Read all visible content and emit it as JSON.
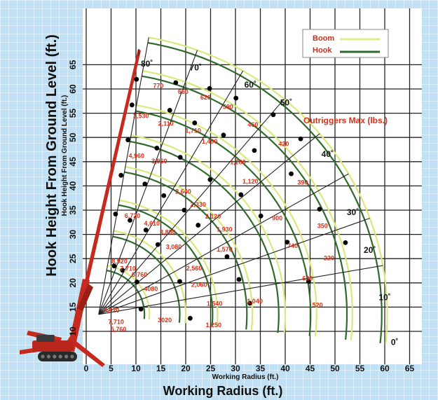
{
  "chart_data": {
    "type": "scatter",
    "title": "",
    "xlabel_outer": "Working Radius (ft.)",
    "xlabel_inner": "Working Radius (ft.)",
    "ylabel_outer": "Hook Height From Ground Level (ft.)",
    "ylabel_inner": "Hook Height From Ground Level (ft.)",
    "xlim": [
      0,
      65
    ],
    "ylim": [
      5,
      65
    ],
    "x_ticks": [
      0,
      5,
      10,
      15,
      20,
      25,
      30,
      35,
      40,
      45,
      50,
      55,
      60,
      65
    ],
    "y_ticks": [
      10,
      15,
      20,
      25,
      30,
      35,
      40,
      45,
      50,
      55,
      60,
      65
    ],
    "grid": true,
    "legend": {
      "position": "top-right",
      "entries": [
        {
          "label": "Boom",
          "color": "#e2ee8c"
        },
        {
          "label": "Hook",
          "color": "#2f6a2c"
        }
      ]
    },
    "annotation": "Outriggers Max (lbs.)",
    "pivot": [
      2.5,
      13.5
    ],
    "boom_angles": [
      "80˚",
      "70˚",
      "60˚",
      "50˚",
      "40˚",
      "30˚",
      "20˚",
      "10˚",
      "0˚"
    ],
    "boom_arc_radii": [
      10.2,
      17.5,
      23.9,
      30.9,
      37.5,
      43.8,
      51.0,
      58.0
    ],
    "hook_arc_radii": [
      9.2,
      16.3,
      22.9,
      29.8,
      36.2,
      42.6,
      49.9,
      56.9
    ],
    "hook_points": [
      [
        10.1,
        62.0
      ],
      [
        18.0,
        61.3
      ],
      [
        24.8,
        60.1
      ],
      [
        30.1,
        58.1
      ],
      [
        37.6,
        54.7
      ],
      [
        43.1,
        49.7
      ],
      [
        9.2,
        56.7
      ],
      [
        16.8,
        55.6
      ],
      [
        21.8,
        53.0
      ],
      [
        27.6,
        50.5
      ],
      [
        33.8,
        47.3
      ],
      [
        41.2,
        42.5
      ],
      [
        46.9,
        35.2
      ],
      [
        52.1,
        28.3
      ],
      [
        8.4,
        49.5
      ],
      [
        14.2,
        47.8
      ],
      [
        18.9,
        45.9
      ],
      [
        24.9,
        41.3
      ],
      [
        31.1,
        38.2
      ],
      [
        35.1,
        33.8
      ],
      [
        40.4,
        28.4
      ],
      [
        44.7,
        20.3
      ],
      [
        7.0,
        42.2
      ],
      [
        11.8,
        40.4
      ],
      [
        15.6,
        38.0
      ],
      [
        19.7,
        35.0
      ],
      [
        22.5,
        31.9
      ],
      [
        28.3,
        25.4
      ],
      [
        30.7,
        20.7
      ],
      [
        32.9,
        15.8
      ],
      [
        5.9,
        34.2
      ],
      [
        8.8,
        32.9
      ],
      [
        12.0,
        30.9
      ],
      [
        14.4,
        27.9
      ],
      [
        18.8,
        20.3
      ],
      [
        20.9,
        12.7
      ],
      [
        5.6,
        23.5
      ],
      [
        7.3,
        22.6
      ],
      [
        10.2,
        20.2
      ],
      [
        11.0,
        14.6
      ]
    ],
    "load_labels": [
      {
        "text": "770",
        "x": 14.5,
        "y": 60.2
      },
      {
        "text": "660",
        "x": 19.5,
        "y": 59.0
      },
      {
        "text": "620",
        "x": 24.0,
        "y": 57.8
      },
      {
        "text": "590",
        "x": 28.5,
        "y": 55.9
      },
      {
        "text": "460",
        "x": 33.5,
        "y": 52.2
      },
      {
        "text": "420",
        "x": 39.7,
        "y": 48.2
      },
      {
        "text": "2,530",
        "x": 11.0,
        "y": 54.0
      },
      {
        "text": "2,110",
        "x": 16.0,
        "y": 52.4
      },
      {
        "text": "1,710",
        "x": 21.5,
        "y": 51.0
      },
      {
        "text": "1,490",
        "x": 24.8,
        "y": 48.7
      },
      {
        "text": "1,280",
        "x": 30.5,
        "y": 44.5
      },
      {
        "text": "1,120",
        "x": 33.0,
        "y": 40.5
      },
      {
        "text": "4,960",
        "x": 10.1,
        "y": 45.8
      },
      {
        "text": "3,960",
        "x": 14.7,
        "y": 44.7
      },
      {
        "text": "2,640",
        "x": 19.5,
        "y": 38.4
      },
      {
        "text": "2,330",
        "x": 22.5,
        "y": 35.7
      },
      {
        "text": "2,120",
        "x": 25.5,
        "y": 33.3
      },
      {
        "text": "1,930",
        "x": 27.8,
        "y": 30.6
      },
      {
        "text": "900",
        "x": 38.4,
        "y": 32.9
      },
      {
        "text": "390",
        "x": 43.5,
        "y": 40.3
      },
      {
        "text": "350",
        "x": 47.5,
        "y": 31.3
      },
      {
        "text": "6,720",
        "x": 9.3,
        "y": 33.4
      },
      {
        "text": "4,610",
        "x": 13.2,
        "y": 31.8
      },
      {
        "text": "3,880",
        "x": 16.4,
        "y": 30.0
      },
      {
        "text": "3,080",
        "x": 17.6,
        "y": 27.0
      },
      {
        "text": "1,570",
        "x": 27.8,
        "y": 26.5
      },
      {
        "text": "740",
        "x": 41.5,
        "y": 27.2
      },
      {
        "text": "220",
        "x": 48.8,
        "y": 24.7
      },
      {
        "text": "8,920",
        "x": 6.7,
        "y": 24.0
      },
      {
        "text": "7,710",
        "x": 8.4,
        "y": 22.5
      },
      {
        "text": "6,760",
        "x": 10.7,
        "y": 21.3
      },
      {
        "text": "4080",
        "x": 13.0,
        "y": 18.3
      },
      {
        "text": "2,560",
        "x": 21.7,
        "y": 22.6
      },
      {
        "text": "2,060",
        "x": 22.7,
        "y": 19.2
      },
      {
        "text": "620",
        "x": 44.5,
        "y": 20.5
      },
      {
        "text": "1,540",
        "x": 25.8,
        "y": 15.3
      },
      {
        "text": "1,040",
        "x": 33.9,
        "y": 15.8
      },
      {
        "text": "520",
        "x": 46.5,
        "y": 15.0
      },
      {
        "text": "8,920",
        "x": 5.1,
        "y": 13.9
      },
      {
        "text": "7,710",
        "x": 6.0,
        "y": 11.5
      },
      {
        "text": "5,760",
        "x": 6.5,
        "y": 10.0
      },
      {
        "text": "3020",
        "x": 15.8,
        "y": 11.9
      },
      {
        "text": "1,250",
        "x": 25.6,
        "y": 10.9
      }
    ]
  }
}
